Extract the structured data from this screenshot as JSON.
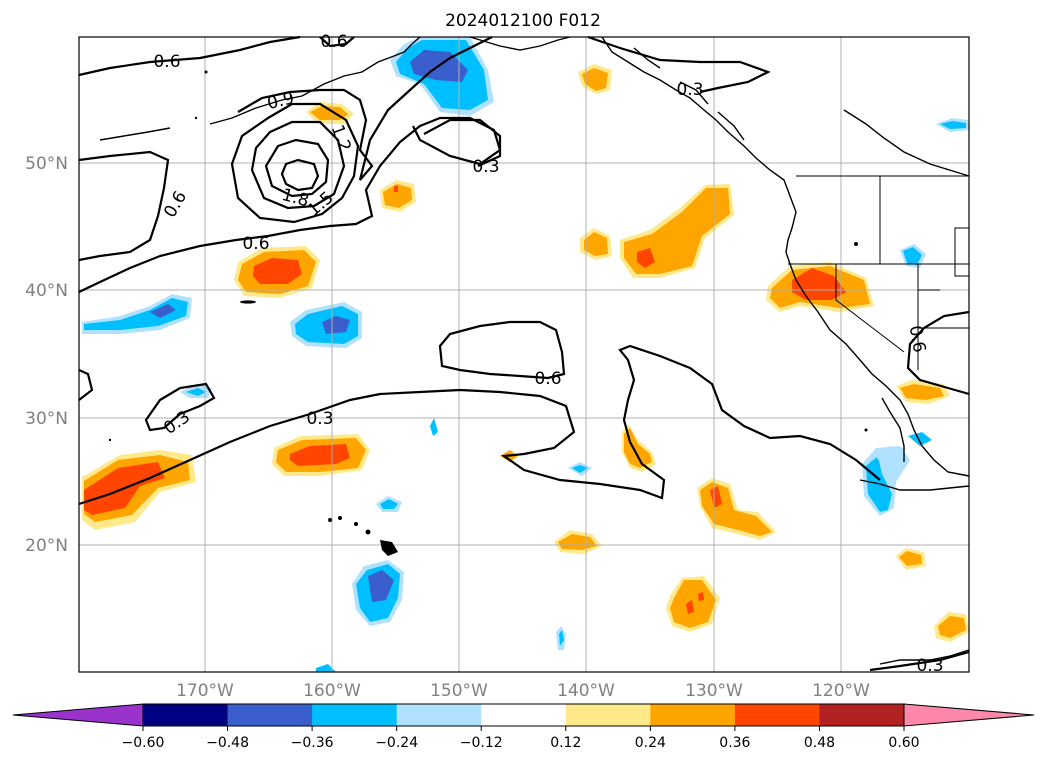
{
  "title": "2024012100 F012",
  "map": {
    "lat_labels": [
      "50°N",
      "40°N",
      "30°N",
      "20°N"
    ],
    "lon_labels": [
      "170°W",
      "160°W",
      "150°W",
      "140°W",
      "130°W",
      "120°W"
    ],
    "contour_labels": [
      "0.6",
      "0.9",
      "1.2",
      "1.5",
      "1.8",
      "0.3",
      "0.6",
      "0.6",
      "0.3",
      "0.3",
      "0.6",
      "0.3",
      "0.6",
      "0.3",
      "0.6"
    ]
  },
  "colorbar": {
    "tick_labels": [
      "−0.60",
      "−0.48",
      "−0.36",
      "−0.24",
      "−0.12",
      "0.12",
      "0.24",
      "0.36",
      "0.48",
      "0.60"
    ],
    "colors": [
      "#9933cc",
      "#000080",
      "#3a5fcd",
      "#00bfff",
      "#b0e2ff",
      "#ffffff",
      "#ffe98a",
      "#ffa500",
      "#ff4500",
      "#b22222",
      "#ff88aa"
    ]
  }
}
